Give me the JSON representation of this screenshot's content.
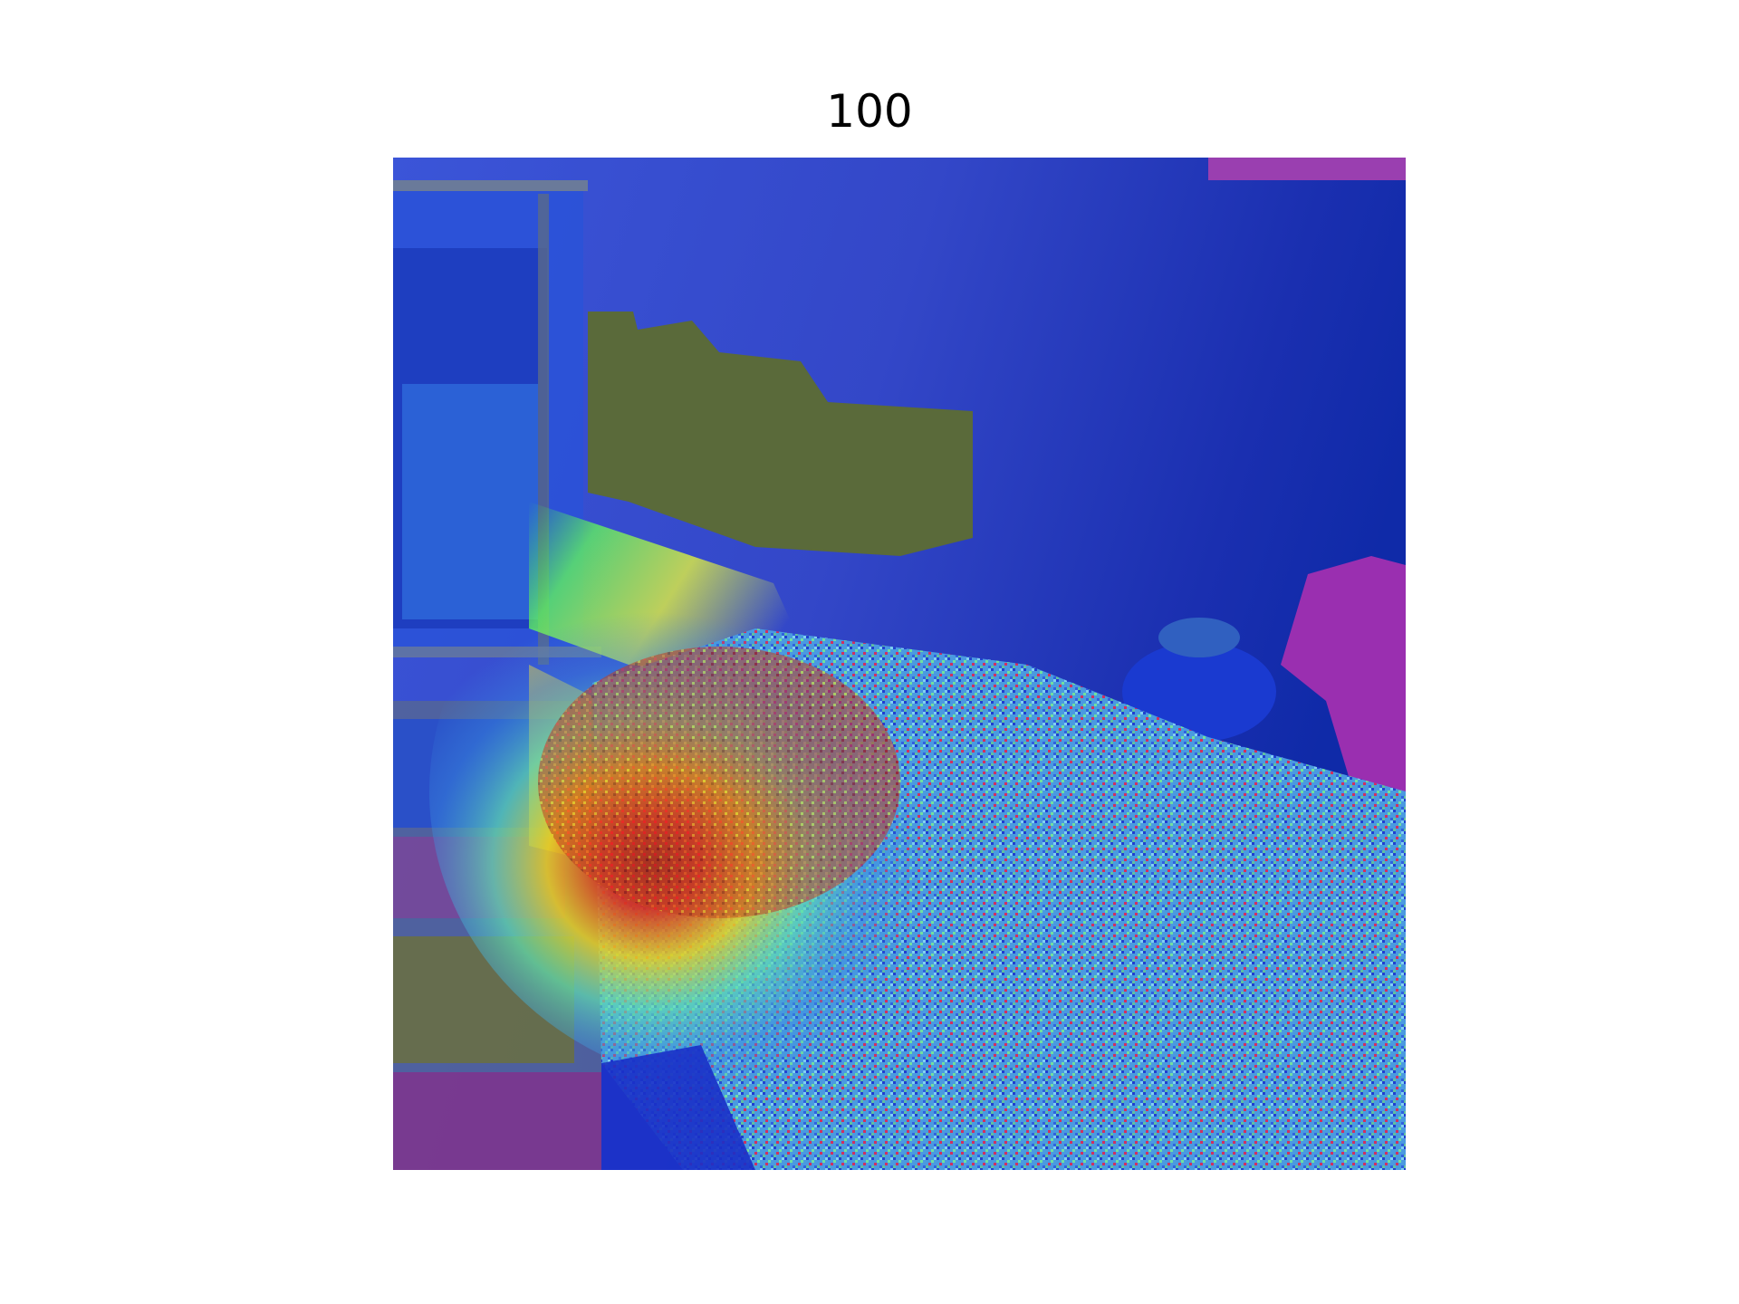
{
  "title": "100",
  "colormap": {
    "name": "jet",
    "stops": [
      "#00007f",
      "#0000ff",
      "#00ffff",
      "#ffff00",
      "#ff0000",
      "#7f0000"
    ]
  },
  "overlay_image": {
    "kind": "heatmap-overlay-photo",
    "scene": "bedroom"
  }
}
